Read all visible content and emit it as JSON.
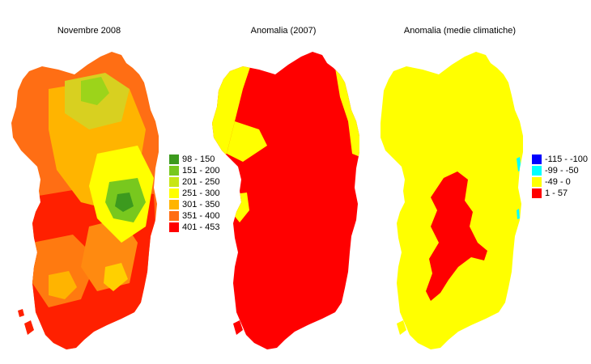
{
  "panels": [
    {
      "title": "Novembre 2008",
      "legend": [
        {
          "label": "98 - 150",
          "color": "#3c9a1e"
        },
        {
          "label": "151 - 200",
          "color": "#78c81e"
        },
        {
          "label": "201 - 250",
          "color": "#c8e614"
        },
        {
          "label": "251 - 300",
          "color": "#ffff00"
        },
        {
          "label": "301 - 350",
          "color": "#ffb400"
        },
        {
          "label": "351 - 400",
          "color": "#ff6e14"
        },
        {
          "label": "401 - 453",
          "color": "#ff0000"
        }
      ]
    },
    {
      "title": "Anomalia (2007)",
      "legend": []
    },
    {
      "title": "Anomalia (medie climatiche)",
      "legend": [
        {
          "label": "-115 - -100",
          "color": "#0000ff"
        },
        {
          "label": "-99 - -50",
          "color": "#00ffff"
        },
        {
          "label": "-49 - 0",
          "color": "#ffff00"
        },
        {
          "label": "1 - 57",
          "color": "#ff0000"
        }
      ]
    }
  ]
}
